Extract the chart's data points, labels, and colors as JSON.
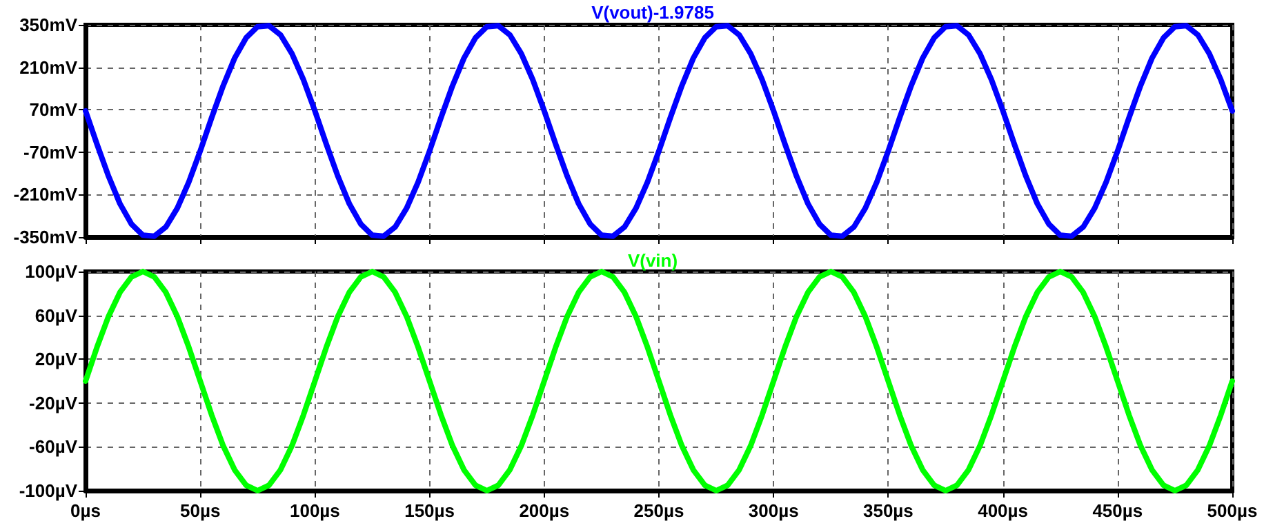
{
  "chart_data": [
    {
      "type": "line",
      "x": [
        0,
        5,
        10,
        15,
        20,
        25,
        30,
        35,
        40,
        45,
        50,
        55,
        60,
        65,
        70,
        75,
        80,
        85,
        90,
        95,
        100,
        105,
        110,
        115,
        120,
        125,
        130,
        135,
        140,
        145,
        150,
        155,
        160,
        165,
        170,
        175,
        180,
        185,
        190,
        195,
        200,
        205,
        210,
        215,
        220,
        225,
        230,
        235,
        240,
        245,
        250,
        255,
        260,
        265,
        270,
        275,
        280,
        285,
        290,
        295,
        300,
        305,
        310,
        315,
        320,
        325,
        330,
        335,
        340,
        345,
        350,
        355,
        360,
        365,
        370,
        375,
        380,
        385,
        390,
        395,
        400,
        405,
        410,
        415,
        420,
        425,
        430,
        435,
        440,
        445,
        450,
        455,
        460,
        465,
        470,
        475,
        480,
        485,
        490,
        495,
        500
      ],
      "series": [
        {
          "name": "V(vout)-1.9785",
          "color": "#0000ff",
          "values": [
            66,
            -44,
            -149,
            -240,
            -307,
            -344,
            -347,
            -317,
            -255,
            -169,
            -66,
            44,
            149,
            240,
            307,
            344,
            347,
            317,
            255,
            169,
            66,
            -44,
            -149,
            -240,
            -307,
            -344,
            -347,
            -317,
            -255,
            -169,
            -66,
            44,
            149,
            240,
            307,
            344,
            347,
            317,
            255,
            169,
            66,
            -44,
            -149,
            -240,
            -307,
            -344,
            -347,
            -317,
            -255,
            -169,
            -66,
            44,
            149,
            240,
            307,
            344,
            347,
            317,
            255,
            169,
            66,
            -44,
            -149,
            -240,
            -307,
            -344,
            -347,
            -317,
            -255,
            -169,
            -66,
            44,
            149,
            240,
            307,
            344,
            347,
            317,
            255,
            169,
            66,
            -44,
            -149,
            -240,
            -307,
            -344,
            -347,
            -317,
            -255,
            -169,
            -66,
            44,
            149,
            240,
            307,
            344,
            347,
            317,
            255,
            169,
            66
          ]
        }
      ],
      "xlim": [
        0,
        500
      ],
      "xticks": [
        {
          "value": 0,
          "label": null
        },
        {
          "value": 50,
          "label": null
        },
        {
          "value": 100,
          "label": null
        },
        {
          "value": 150,
          "label": null
        },
        {
          "value": 200,
          "label": null
        },
        {
          "value": 250,
          "label": null
        },
        {
          "value": 300,
          "label": null
        },
        {
          "value": 350,
          "label": null
        },
        {
          "value": 400,
          "label": null
        },
        {
          "value": 450,
          "label": null
        },
        {
          "value": 500,
          "label": null
        }
      ],
      "ylim": [
        -350,
        350
      ],
      "yticks": [
        {
          "value": -350,
          "label": "-350mV"
        },
        {
          "value": -210,
          "label": "-210mV"
        },
        {
          "value": -70,
          "label": "-70mV"
        },
        {
          "value": 70,
          "label": "70mV"
        },
        {
          "value": 210,
          "label": "210mV"
        },
        {
          "value": 350,
          "label": "350mV"
        }
      ],
      "tick_labels": "y",
      "grid": true,
      "legend": "top",
      "marker": "none",
      "line_style": "solid"
    },
    {
      "type": "line",
      "x": [
        0,
        5,
        10,
        15,
        20,
        25,
        30,
        35,
        40,
        45,
        50,
        55,
        60,
        65,
        70,
        75,
        80,
        85,
        90,
        95,
        100,
        105,
        110,
        115,
        120,
        125,
        130,
        135,
        140,
        145,
        150,
        155,
        160,
        165,
        170,
        175,
        180,
        185,
        190,
        195,
        200,
        205,
        210,
        215,
        220,
        225,
        230,
        235,
        240,
        245,
        250,
        255,
        260,
        265,
        270,
        275,
        280,
        285,
        290,
        295,
        300,
        305,
        310,
        315,
        320,
        325,
        330,
        335,
        340,
        345,
        350,
        355,
        360,
        365,
        370,
        375,
        380,
        385,
        390,
        395,
        400,
        405,
        410,
        415,
        420,
        425,
        430,
        435,
        440,
        445,
        450,
        455,
        460,
        465,
        470,
        475,
        480,
        485,
        490,
        495,
        500
      ],
      "series": [
        {
          "name": "V(vin)",
          "color": "#00ff00",
          "values": [
            0,
            31,
            59,
            81,
            95,
            100,
            95,
            81,
            59,
            31,
            0,
            -31,
            -59,
            -81,
            -95,
            -100,
            -95,
            -81,
            -59,
            -31,
            0,
            31,
            59,
            81,
            95,
            100,
            95,
            81,
            59,
            31,
            0,
            -31,
            -59,
            -81,
            -95,
            -100,
            -95,
            -81,
            -59,
            -31,
            0,
            31,
            59,
            81,
            95,
            100,
            95,
            81,
            59,
            31,
            0,
            -31,
            -59,
            -81,
            -95,
            -100,
            -95,
            -81,
            -59,
            -31,
            0,
            31,
            59,
            81,
            95,
            100,
            95,
            81,
            59,
            31,
            0,
            -31,
            -59,
            -81,
            -95,
            -100,
            -95,
            -81,
            -59,
            -31,
            0,
            31,
            59,
            81,
            95,
            100,
            95,
            81,
            59,
            31,
            0,
            -31,
            -59,
            -81,
            -95,
            -100,
            -95,
            -81,
            -59,
            -31,
            0
          ]
        }
      ],
      "xlim": [
        0,
        500
      ],
      "xticks": [
        {
          "value": 0,
          "label": "0µs"
        },
        {
          "value": 50,
          "label": "50µs"
        },
        {
          "value": 100,
          "label": "100µs"
        },
        {
          "value": 150,
          "label": "150µs"
        },
        {
          "value": 200,
          "label": "200µs"
        },
        {
          "value": 250,
          "label": "250µs"
        },
        {
          "value": 300,
          "label": "300µs"
        },
        {
          "value": 350,
          "label": "350µs"
        },
        {
          "value": 400,
          "label": "400µs"
        },
        {
          "value": 450,
          "label": "450µs"
        },
        {
          "value": 500,
          "label": "500µs"
        }
      ],
      "ylim": [
        -100,
        100
      ],
      "yticks": [
        {
          "value": -100,
          "label": "-100µV"
        },
        {
          "value": -60,
          "label": "-60µV"
        },
        {
          "value": -20,
          "label": "-20µV"
        },
        {
          "value": 20,
          "label": "20µV"
        },
        {
          "value": 60,
          "label": "60µV"
        },
        {
          "value": 100,
          "label": "100µV"
        }
      ],
      "grid": true,
      "legend": "top",
      "marker": "none",
      "line_style": "solid"
    }
  ]
}
